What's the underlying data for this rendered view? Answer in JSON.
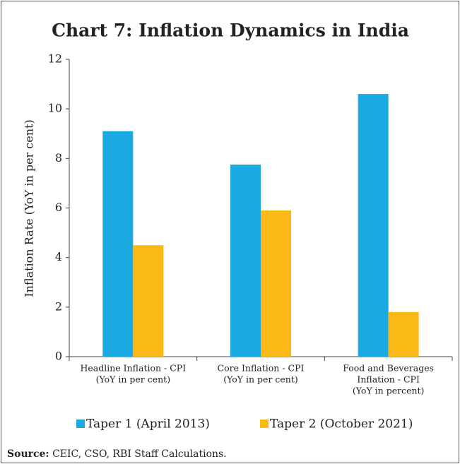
{
  "chart_data": {
    "type": "bar",
    "title": "Chart 7: Inflation Dynamics in India",
    "y_label": "Inflation Rate (YoY in per cent)",
    "categories": [
      [
        "Headline Inflation - CPI",
        "(YoY in per cent)"
      ],
      [
        "Core Inflation - CPI",
        "(YoY in per cent)"
      ],
      [
        "Food and Beverages",
        "Inflation - CPI",
        "(YoY in percent)"
      ]
    ],
    "series": [
      {
        "name": "Taper 1 (April 2013)",
        "color": "#1aa9e0",
        "values": [
          9.1,
          7.75,
          10.6
        ]
      },
      {
        "name": "Taper 2 (October 2021)",
        "color": "#fbb917",
        "values": [
          4.5,
          5.9,
          1.8
        ]
      }
    ],
    "ylim": [
      0,
      12
    ],
    "yticks": [
      0,
      2,
      4,
      6,
      8,
      10,
      12
    ],
    "grid": false,
    "legend": "bottom",
    "source_label": "Source:",
    "source": "CEIC, CSO, RBI Staff Calculations."
  }
}
